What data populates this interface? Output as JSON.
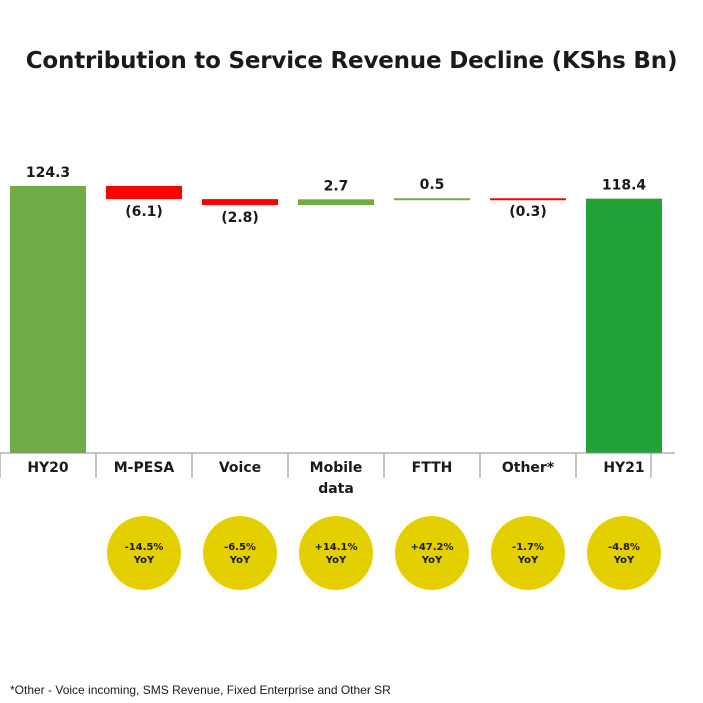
{
  "title": "Contribution to Service Revenue Decline (KShs Bn)",
  "footnote": "*Other - Voice incoming, SMS Revenue, Fixed Enterprise and Other SR",
  "colors": {
    "increase": "#70ad47",
    "decrease": "#ff0000",
    "total_start": "#70ad47",
    "total_end": "#22a338",
    "yoy_badge": "#e4d000"
  },
  "chart_data": {
    "type": "bar",
    "subtype": "waterfall",
    "title": "Contribution to Service Revenue Decline (KShs Bn)",
    "categories": [
      "HY20",
      "M-PESA",
      "Voice",
      "Mobile data",
      "FTTH",
      "Other*",
      "HY21"
    ],
    "category_lines": [
      [
        "HY20"
      ],
      [
        "M-PESA"
      ],
      [
        "Voice"
      ],
      [
        "Mobile",
        "data"
      ],
      [
        "FTTH"
      ],
      [
        "Other*"
      ],
      [
        "HY21"
      ]
    ],
    "values": [
      124.3,
      -6.1,
      -2.8,
      2.7,
      0.5,
      -0.3,
      118.4
    ],
    "kinds": [
      "total",
      "delta",
      "delta",
      "delta",
      "delta",
      "delta",
      "total"
    ],
    "value_labels": [
      "124.3",
      "(6.1)",
      "(2.8)",
      "2.7",
      "0.5",
      "(0.3)",
      "118.4"
    ],
    "yoy_labels": [
      "",
      "-14.5%",
      "-6.5%",
      "+14.1%",
      "+47.2%",
      "-1.7%",
      "-4.8%"
    ],
    "yoy_suffix": "YoY",
    "xlabel": "",
    "ylabel": "",
    "ylim": [
      0,
      130
    ]
  }
}
